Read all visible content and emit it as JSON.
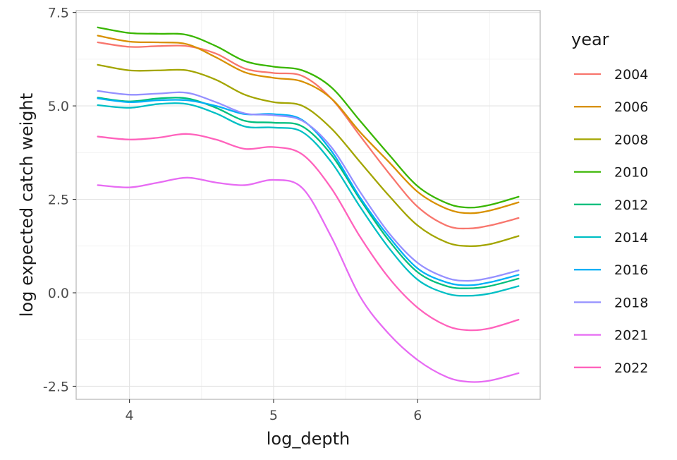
{
  "chart_data": {
    "type": "line",
    "xlabel": "log_depth",
    "ylabel": "log expected catch weight",
    "xlim": [
      3.63,
      6.85
    ],
    "ylim": [
      -2.85,
      7.55
    ],
    "xticks": [
      4,
      5,
      6
    ],
    "xtick_labels": [
      "4",
      "5",
      "6"
    ],
    "yticks": [
      -2.5,
      0.0,
      2.5,
      5.0,
      7.5
    ],
    "ytick_labels": [
      "-2.5",
      "0.0",
      "2.5",
      "5.0",
      "7.5"
    ],
    "grid": true,
    "legend": {
      "title": "year",
      "position": "right"
    },
    "x": [
      3.78,
      4.0,
      4.2,
      4.4,
      4.6,
      4.8,
      5.0,
      5.2,
      5.4,
      5.6,
      5.8,
      6.0,
      6.2,
      6.35,
      6.5,
      6.7
    ],
    "series": [
      {
        "name": "2004",
        "color": "#F8766D",
        "values": [
          6.7,
          6.58,
          6.6,
          6.6,
          6.4,
          6.0,
          5.88,
          5.8,
          5.2,
          4.2,
          3.2,
          2.3,
          1.8,
          1.72,
          1.8,
          2.0
        ]
      },
      {
        "name": "2006",
        "color": "#D89000",
        "values": [
          6.88,
          6.72,
          6.7,
          6.65,
          6.3,
          5.9,
          5.75,
          5.65,
          5.2,
          4.3,
          3.5,
          2.7,
          2.25,
          2.13,
          2.2,
          2.42
        ]
      },
      {
        "name": "2008",
        "color": "#A3A500",
        "values": [
          6.1,
          5.95,
          5.95,
          5.95,
          5.7,
          5.3,
          5.1,
          5.0,
          4.4,
          3.5,
          2.6,
          1.8,
          1.35,
          1.25,
          1.3,
          1.52
        ]
      },
      {
        "name": "2010",
        "color": "#39B600",
        "values": [
          7.1,
          6.95,
          6.93,
          6.9,
          6.6,
          6.2,
          6.05,
          5.95,
          5.5,
          4.6,
          3.7,
          2.85,
          2.4,
          2.28,
          2.35,
          2.57
        ]
      },
      {
        "name": "2012",
        "color": "#00BF7D",
        "values": [
          5.22,
          5.12,
          5.2,
          5.2,
          4.95,
          4.6,
          4.55,
          4.45,
          3.7,
          2.5,
          1.4,
          0.55,
          0.18,
          0.12,
          0.18,
          0.38
        ]
      },
      {
        "name": "2014",
        "color": "#00BFC4",
        "values": [
          5.02,
          4.95,
          5.05,
          5.05,
          4.8,
          4.45,
          4.42,
          4.3,
          3.5,
          2.3,
          1.2,
          0.35,
          -0.02,
          -0.08,
          -0.02,
          0.18
        ]
      },
      {
        "name": "2016",
        "color": "#00B0F6",
        "values": [
          5.2,
          5.1,
          5.15,
          5.15,
          5.0,
          4.78,
          4.78,
          4.62,
          3.8,
          2.55,
          1.5,
          0.65,
          0.28,
          0.2,
          0.28,
          0.48
        ]
      },
      {
        "name": "2018",
        "color": "#9590FF",
        "values": [
          5.4,
          5.3,
          5.33,
          5.35,
          5.1,
          4.8,
          4.75,
          4.6,
          3.9,
          2.7,
          1.6,
          0.8,
          0.4,
          0.32,
          0.4,
          0.6
        ]
      },
      {
        "name": "2021",
        "color": "#E76BF3",
        "values": [
          2.88,
          2.82,
          2.95,
          3.08,
          2.95,
          2.88,
          3.02,
          2.8,
          1.5,
          -0.1,
          -1.1,
          -1.8,
          -2.25,
          -2.38,
          -2.35,
          -2.15
        ]
      },
      {
        "name": "2022",
        "color": "#FF62BC",
        "values": [
          4.18,
          4.1,
          4.15,
          4.25,
          4.1,
          3.85,
          3.9,
          3.7,
          2.8,
          1.5,
          0.4,
          -0.4,
          -0.88,
          -1.0,
          -0.95,
          -0.72
        ]
      }
    ]
  }
}
